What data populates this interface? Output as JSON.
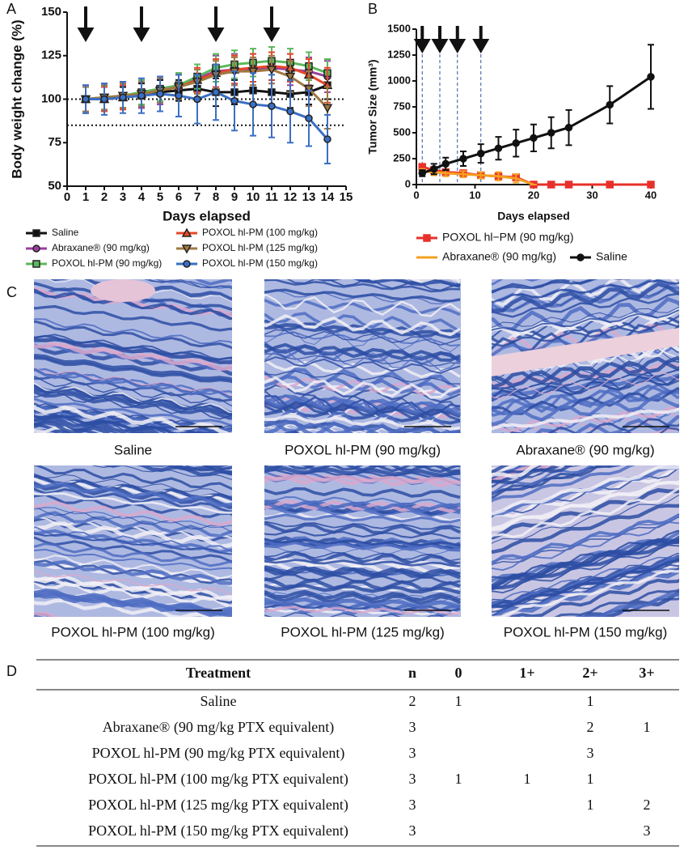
{
  "chart_data": [
    {
      "type": "line",
      "panel": "A",
      "ylabel": "Body weight change (%)",
      "xlabel": "Days elapsed",
      "x": [
        1,
        2,
        3,
        4,
        5,
        6,
        7,
        8,
        9,
        10,
        11,
        12,
        13,
        14
      ],
      "xlim": [
        0,
        15
      ],
      "xticks": [
        0,
        1,
        2,
        3,
        4,
        5,
        6,
        7,
        8,
        9,
        10,
        11,
        12,
        13,
        14,
        15
      ],
      "ylim": [
        50,
        150
      ],
      "yticks": [
        50,
        75,
        100,
        125,
        150
      ],
      "reference_lines": [
        100,
        85
      ],
      "dose_days": [
        1,
        4,
        8,
        11
      ],
      "dose_guides": false,
      "series": [
        {
          "name": "Saline",
          "color": "#111111",
          "marker": "square",
          "values": [
            100,
            100,
            101,
            102,
            104,
            105,
            106,
            104,
            104,
            105,
            104,
            103,
            104,
            108
          ],
          "errors": [
            7,
            7,
            6,
            7,
            7,
            6,
            7,
            8,
            7,
            8,
            7,
            8,
            7,
            8
          ]
        },
        {
          "name": "Abraxane® (90 mg/kg)",
          "color": "#9b3fa0",
          "marker": "circle",
          "values": [
            100,
            101,
            102,
            103,
            105,
            108,
            112,
            116,
            117,
            117,
            118,
            117,
            116,
            113
          ],
          "errors": [
            8,
            8,
            7,
            8,
            8,
            7,
            8,
            9,
            9,
            9,
            9,
            9,
            8,
            9
          ]
        },
        {
          "name": "POXOL hl-PM (90 mg/kg)",
          "color": "#5cb85c",
          "marker": "square",
          "values": [
            100,
            101,
            102,
            104,
            106,
            108,
            113,
            118,
            120,
            121,
            122,
            121,
            119,
            115
          ],
          "errors": [
            7,
            7,
            7,
            7,
            7,
            7,
            7,
            8,
            8,
            8,
            8,
            8,
            8,
            8
          ]
        },
        {
          "name": "POXOL hl-PM (100 mg/kg)",
          "color": "#e8472a",
          "marker": "triangle",
          "values": [
            100,
            100,
            101,
            103,
            105,
            107,
            111,
            115,
            117,
            118,
            119,
            118,
            114,
            108
          ],
          "errors": [
            7,
            7,
            7,
            7,
            7,
            7,
            7,
            8,
            8,
            8,
            8,
            8,
            9,
            10
          ]
        },
        {
          "name": "POXOL hl-PM (125 mg/kg)",
          "color": "#a07840",
          "marker": "triangle-down",
          "values": [
            100,
            101,
            102,
            103,
            105,
            107,
            110,
            114,
            116,
            116,
            117,
            113,
            106,
            95
          ],
          "errors": [
            7,
            7,
            7,
            7,
            7,
            7,
            7,
            8,
            8,
            8,
            8,
            9,
            10,
            12
          ]
        },
        {
          "name": "POXOL hl-PM (150 mg/kg)",
          "color": "#3a6fc4",
          "marker": "circle",
          "values": [
            100,
            100,
            101,
            102,
            103,
            102,
            100,
            104,
            99,
            97,
            96,
            93,
            89,
            77
          ],
          "errors": [
            8,
            9,
            9,
            10,
            10,
            12,
            14,
            16,
            17,
            18,
            18,
            18,
            16,
            14
          ]
        }
      ]
    },
    {
      "type": "line",
      "panel": "B",
      "ylabel": "Tumor Size (mm³)",
      "xlabel": "Days elapsed",
      "x": [
        1,
        3,
        5,
        8,
        11,
        14,
        17,
        20,
        23,
        26,
        33,
        40
      ],
      "xlim": [
        0,
        40
      ],
      "xticks": [
        0,
        10,
        20,
        30,
        40
      ],
      "ylim": [
        0,
        1500
      ],
      "yticks": [
        0,
        250,
        500,
        750,
        1000,
        1250,
        1500
      ],
      "dose_days": [
        1,
        4,
        7,
        11
      ],
      "dose_guides": true,
      "series": [
        {
          "name": "POXOL hl−PM (90 mg/kg)",
          "color": "#e8302a",
          "marker": "square",
          "values": [
            170,
            140,
            120,
            110,
            90,
            80,
            70,
            0,
            0,
            0,
            0,
            0
          ],
          "errors": [
            30,
            20,
            20,
            20,
            20,
            20,
            20,
            0,
            0,
            0,
            0,
            0
          ]
        },
        {
          "name": "Abraxane® (90 mg/kg)",
          "color": "#f5a020",
          "marker": "none",
          "values": [
            130,
            120,
            110,
            100,
            90,
            80,
            60,
            0,
            null,
            null,
            null,
            null
          ],
          "errors": [
            20,
            30,
            30,
            30,
            30,
            40,
            40,
            0,
            null,
            null,
            null,
            null
          ]
        },
        {
          "name": "Saline",
          "color": "#111111",
          "marker": "circle",
          "values": [
            110,
            150,
            200,
            250,
            300,
            350,
            400,
            450,
            500,
            550,
            770,
            1040
          ],
          "errors": [
            30,
            50,
            60,
            70,
            90,
            110,
            130,
            130,
            150,
            170,
            180,
            310
          ]
        }
      ]
    }
  ],
  "histology": {
    "panel": "C",
    "captions": [
      "Saline",
      "POXOL hl-PM (90 mg/kg)",
      "Abraxane® (90 mg/kg)",
      "POXOL hl-PM (100 mg/kg)",
      "POXOL hl-PM (125 mg/kg)",
      "POXOL hl-PM (150 mg/kg)"
    ]
  },
  "table": {
    "panel": "D",
    "header": [
      "Treatment",
      "n",
      "0",
      "1+",
      "2+",
      "3+"
    ],
    "rows": [
      [
        "Saline",
        2,
        1,
        null,
        1,
        null
      ],
      [
        "Abraxane® (90 mg/kg PTX equivalent)",
        3,
        null,
        null,
        2,
        1
      ],
      [
        "POXOL hl-PM (90 mg/kg PTX equivalent)",
        3,
        null,
        null,
        3,
        null
      ],
      [
        "POXOL hl-PM (100 mg/kg PTX equivalent)",
        3,
        1,
        1,
        1,
        null
      ],
      [
        "POXOL hl-PM (125 mg/kg PTX equivalent)",
        3,
        null,
        null,
        1,
        2
      ],
      [
        "POXOL hl-PM (150 mg/kg PTX equivalent)",
        3,
        null,
        null,
        null,
        3
      ]
    ]
  }
}
